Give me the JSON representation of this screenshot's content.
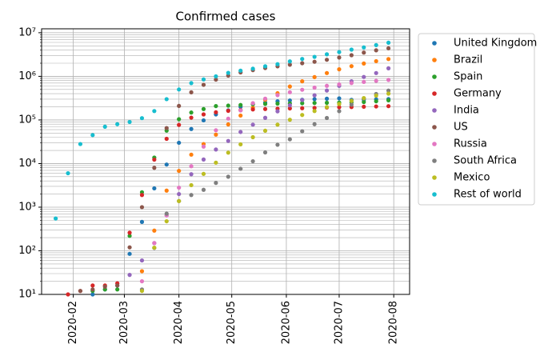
{
  "chart_data": {
    "type": "scatter",
    "title": "Confirmed cases",
    "x": [
      "2020-01-22",
      "2020-01-29",
      "2020-02-05",
      "2020-02-12",
      "2020-02-19",
      "2020-02-26",
      "2020-03-04",
      "2020-03-11",
      "2020-03-18",
      "2020-03-25",
      "2020-04-01",
      "2020-04-08",
      "2020-04-15",
      "2020-04-22",
      "2020-04-29",
      "2020-05-06",
      "2020-05-13",
      "2020-05-20",
      "2020-05-27",
      "2020-06-03",
      "2020-06-10",
      "2020-06-17",
      "2020-06-24",
      "2020-07-01",
      "2020-07-08",
      "2020-07-15",
      "2020-07-22",
      "2020-07-29"
    ],
    "series": [
      {
        "name": "United Kingdom",
        "color": "#1f77b4",
        "values": [
          null,
          null,
          null,
          10,
          13,
          16,
          85,
          460,
          2700,
          9500,
          30000,
          62000,
          98000,
          134000,
          166000,
          200000,
          230000,
          250000,
          268000,
          280000,
          290000,
          300000,
          307000,
          313000,
          288000,
          292000,
          297000,
          301000
        ]
      },
      {
        "name": "Brazil",
        "color": "#ff7f0e",
        "values": [
          null,
          null,
          null,
          null,
          null,
          null,
          null,
          34,
          290,
          2400,
          6800,
          16000,
          28000,
          46000,
          79000,
          126000,
          190000,
          290000,
          410000,
          585000,
          770000,
          960000,
          1190000,
          1450000,
          1710000,
          1970000,
          2230000,
          2490000
        ]
      },
      {
        "name": "Spain",
        "color": "#2ca02c",
        "values": [
          null,
          null,
          null,
          12,
          13,
          13,
          220,
          2200,
          13700,
          57000,
          104000,
          148000,
          178000,
          208000,
          213000,
          220000,
          229000,
          233000,
          237000,
          240000,
          242000,
          245000,
          247000,
          250000,
          252000,
          258000,
          268000,
          282000
        ]
      },
      {
        "name": "Germany",
        "color": "#d62728",
        "values": [
          null,
          10,
          12,
          16,
          16,
          18,
          260,
          1900,
          12300,
          37000,
          77000,
          113000,
          134000,
          150000,
          162000,
          168000,
          174000,
          178000,
          181000,
          184000,
          186000,
          189000,
          193000,
          196000,
          198000,
          201000,
          204000,
          207000
        ]
      },
      {
        "name": "India",
        "color": "#9467bd",
        "values": [
          null,
          null,
          null,
          null,
          null,
          null,
          28,
          60,
          150,
          650,
          2000,
          5700,
          12400,
          21000,
          33000,
          53000,
          78000,
          112000,
          158000,
          217000,
          286000,
          367000,
          473000,
          605000,
          769000,
          969000,
          1190000,
          1530000
        ]
      },
      {
        "name": "US",
        "color": "#8c564b",
        "values": [
          null,
          null,
          12,
          13,
          15,
          16,
          120,
          1000,
          8000,
          65000,
          210000,
          430000,
          640000,
          840000,
          1040000,
          1230000,
          1390000,
          1550000,
          1700000,
          1850000,
          2000000,
          2160000,
          2400000,
          2700000,
          3050000,
          3500000,
          3950000,
          4400000
        ]
      },
      {
        "name": "Russia",
        "color": "#e377c2",
        "values": [
          null,
          null,
          null,
          null,
          null,
          null,
          null,
          20,
          150,
          650,
          2800,
          8700,
          24500,
          58000,
          107000,
          165000,
          242000,
          308000,
          371000,
          432000,
          493000,
          552000,
          606000,
          654000,
          701000,
          746000,
          789000,
          828000
        ]
      },
      {
        "name": "South Africa",
        "color": "#7f7f7f",
        "values": [
          null,
          null,
          null,
          null,
          null,
          null,
          null,
          13,
          116,
          710,
          1380,
          1900,
          2500,
          3600,
          5000,
          7600,
          11300,
          18000,
          27000,
          36000,
          55000,
          80000,
          111000,
          159000,
          224000,
          311000,
          394000,
          471000
        ]
      },
      {
        "name": "Mexico",
        "color": "#bcbd22",
        "values": [
          null,
          null,
          null,
          null,
          null,
          null,
          null,
          12,
          118,
          475,
          1380,
          3200,
          5800,
          10500,
          17800,
          27600,
          40200,
          56600,
          78000,
          101000,
          130000,
          160000,
          197000,
          232000,
          275000,
          318000,
          362000,
          402000
        ]
      },
      {
        "name": "Rest of world",
        "color": "#17becf",
        "values": [
          550,
          6000,
          28000,
          45000,
          70000,
          80000,
          90000,
          110000,
          160000,
          300000,
          500000,
          700000,
          850000,
          1000000,
          1200000,
          1350000,
          1500000,
          1700000,
          1900000,
          2200000,
          2500000,
          2800000,
          3200000,
          3600000,
          4100000,
          4600000,
          5200000,
          5900000
        ]
      }
    ],
    "xlim": [
      "2020-01-14",
      "2020-08-10"
    ],
    "xticks": [
      {
        "value": "2020-02-01",
        "label": "2020-02"
      },
      {
        "value": "2020-03-01",
        "label": "2020-03"
      },
      {
        "value": "2020-04-01",
        "label": "2020-04"
      },
      {
        "value": "2020-05-01",
        "label": "2020-05"
      },
      {
        "value": "2020-06-01",
        "label": "2020-06"
      },
      {
        "value": "2020-07-01",
        "label": "2020-07"
      },
      {
        "value": "2020-08-01",
        "label": "2020-08"
      }
    ],
    "ylim": [
      10,
      12300000
    ],
    "ylog": true,
    "yticks": [
      {
        "value": 10,
        "label": "10¹"
      },
      {
        "value": 100,
        "label": "10²"
      },
      {
        "value": 1000,
        "label": "10³"
      },
      {
        "value": 10000,
        "label": "10⁴"
      },
      {
        "value": 100000,
        "label": "10⁵"
      },
      {
        "value": 1000000,
        "label": "10⁶"
      },
      {
        "value": 10000000,
        "label": "10⁷"
      }
    ],
    "grid": true,
    "minor_grid": true,
    "legend": "outside-right"
  }
}
